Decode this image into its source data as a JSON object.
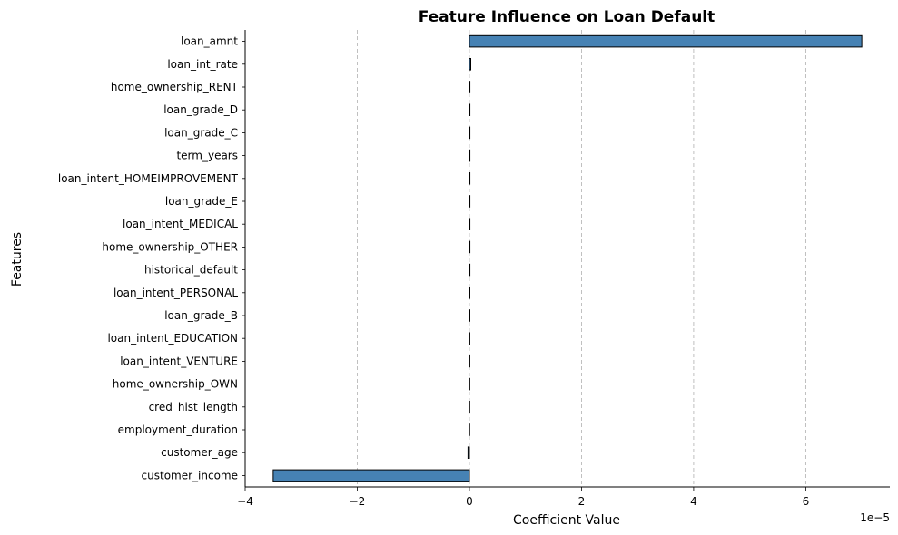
{
  "chart_data": {
    "type": "bar",
    "orientation": "horizontal",
    "title": "Feature Influence on Loan Default",
    "xlabel": "Coefficient Value",
    "ylabel": "Features",
    "x_offset_label": "1e−5",
    "x_scale_factor": 1e-05,
    "xlim": [
      -4e-05,
      7.5e-05
    ],
    "xticks": [
      -4e-05,
      -2e-05,
      0,
      2e-05,
      4e-05,
      6e-05
    ],
    "xtick_labels": [
      "−4",
      "−2",
      "0",
      "2",
      "4",
      "6"
    ],
    "grid": "x-dashed",
    "bar_color": "#4682b4",
    "edge_color": "#000000",
    "categories": [
      "loan_amnt",
      "loan_int_rate",
      "home_ownership_RENT",
      "loan_grade_D",
      "loan_grade_C",
      "term_years",
      "loan_intent_HOMEIMPROVEMENT",
      "loan_grade_E",
      "loan_intent_MEDICAL",
      "home_ownership_OTHER",
      "historical_default",
      "loan_intent_PERSONAL",
      "loan_grade_B",
      "loan_intent_EDUCATION",
      "loan_intent_VENTURE",
      "home_ownership_OWN",
      "cred_hist_length",
      "employment_duration",
      "customer_age",
      "customer_income"
    ],
    "values": [
      7e-05,
      2.5e-07,
      6e-08,
      5e-08,
      4e-08,
      3e-08,
      2e-08,
      2e-08,
      1e-08,
      1e-08,
      0,
      -1e-08,
      -1e-08,
      -2e-08,
      -2e-08,
      -3e-08,
      -4e-08,
      -5e-08,
      -2.5e-07,
      -3.5e-05
    ]
  }
}
